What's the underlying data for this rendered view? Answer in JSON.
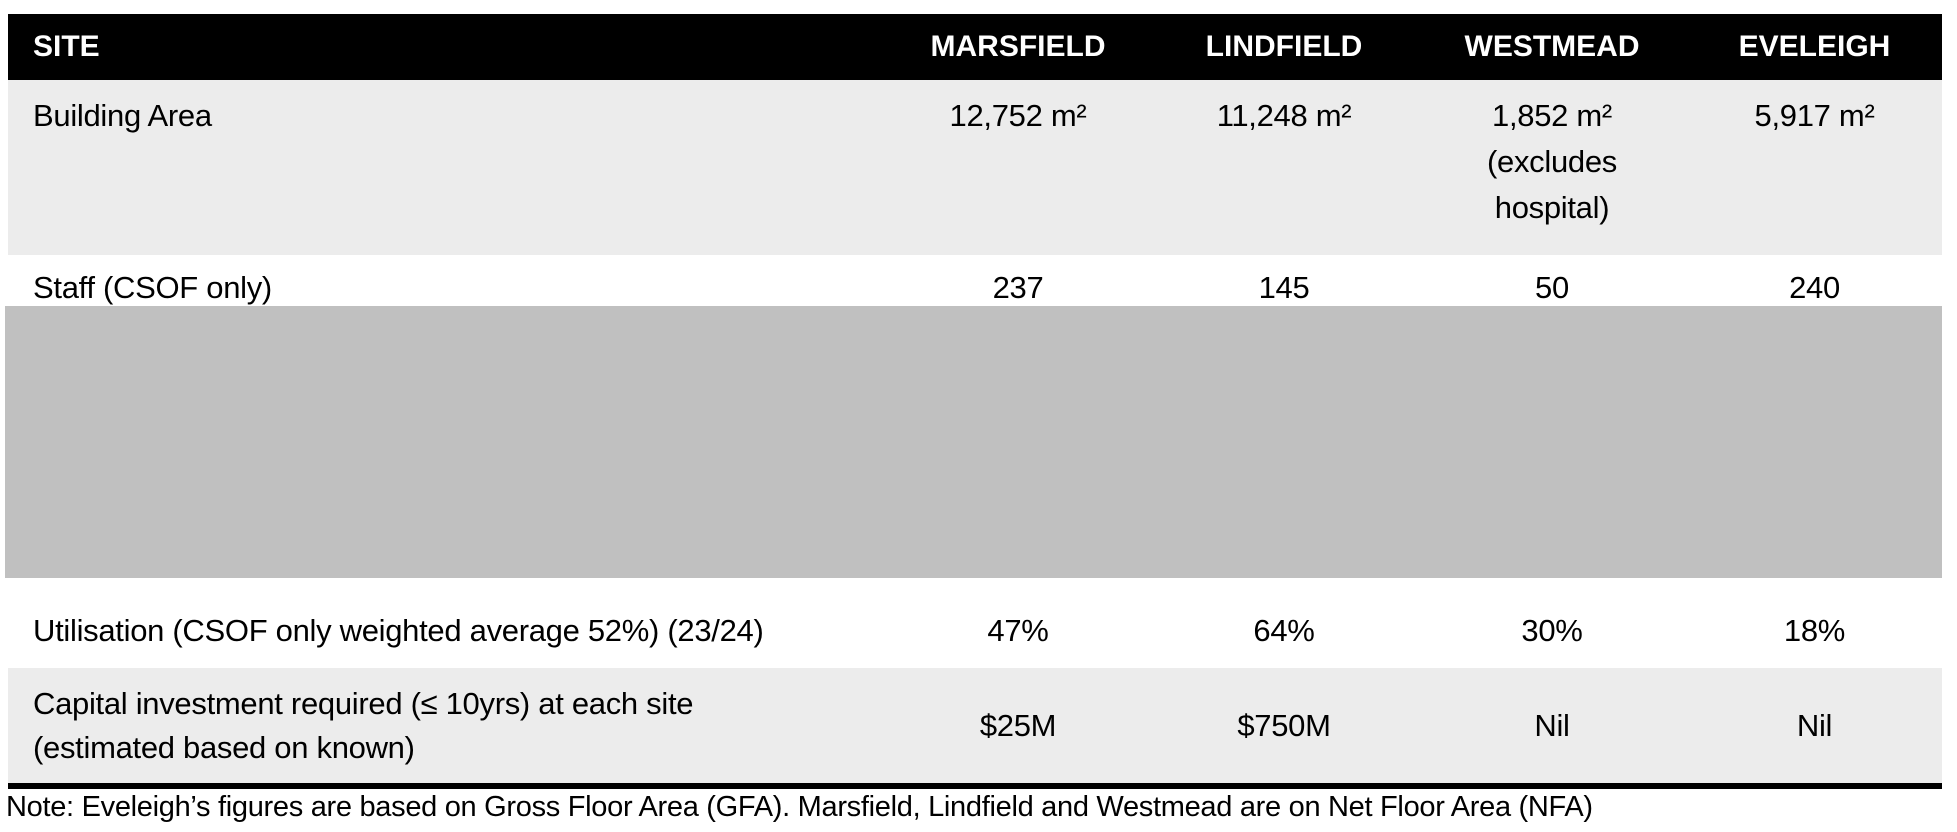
{
  "table": {
    "header": {
      "site": "SITE",
      "columns": [
        "MARSFIELD",
        "LINDFIELD",
        "WESTMEAD",
        "EVELEIGH"
      ]
    },
    "building_area": {
      "label": "Building Area",
      "values": [
        "12,752 m²",
        "11,248 m²",
        "1,852 m²",
        "5,917 m²"
      ],
      "westmead_caveat_line1": "(excludes",
      "westmead_caveat_line2": "hospital)"
    },
    "staff": {
      "label": "Staff (CSOF only)",
      "values": [
        "237",
        "145",
        "50",
        "240"
      ]
    },
    "utilisation": {
      "label": "Utilisation (CSOF only weighted average 52%) (23/24)",
      "values": [
        "47%",
        "64%",
        "30%",
        "18%"
      ]
    },
    "capital": {
      "label_line1": "Capital investment required (≤ 10yrs) at each site",
      "label_line2": "(estimated based on known)",
      "values": [
        "$25M",
        "$750M",
        "Nil",
        "Nil"
      ]
    },
    "note": "Note: Eveleigh’s figures are based on Gross Floor Area (GFA). Marsfield, Lindfield and Westmead are on Net Floor Area (NFA)"
  },
  "colors": {
    "header_bg": "#000000",
    "header_text": "#ffffff",
    "band_light": "#ececec",
    "redaction_gray": "#c0c0c0",
    "rule": "#000000",
    "text": "#000000"
  }
}
